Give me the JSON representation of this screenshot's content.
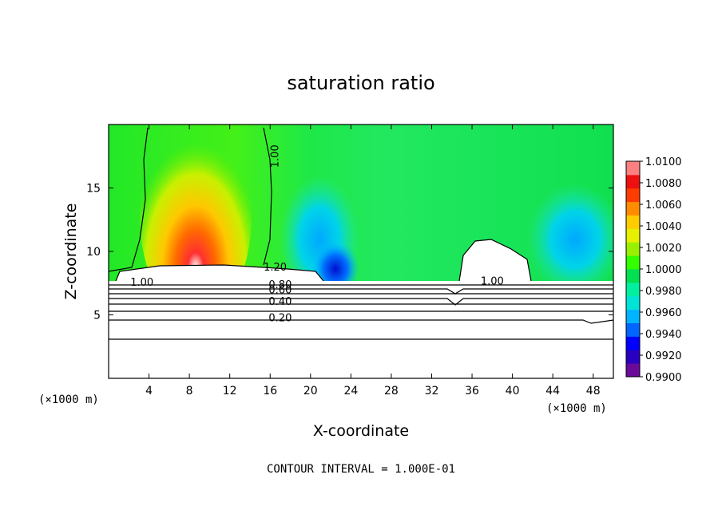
{
  "chart_data": {
    "type": "heatmap",
    "title": "saturation ratio",
    "xlabel": "X-coordinate",
    "ylabel": "Z-coordinate",
    "x_unit_label": "(×1000 m)",
    "y_unit_label": "(×1000 m)",
    "xlim": [
      0,
      50
    ],
    "ylim": [
      0,
      20
    ],
    "x_ticks": [
      "4",
      "8",
      "12",
      "16",
      "20",
      "24",
      "28",
      "32",
      "36",
      "40",
      "44",
      "48"
    ],
    "y_ticks": [
      "5",
      "10",
      "15"
    ],
    "footer": "CONTOUR INTERVAL = 1.000E-01",
    "colorbar": {
      "labels": [
        "1.0100",
        "1.0080",
        "1.0060",
        "1.0040",
        "1.0020",
        "1.0000",
        "0.9980",
        "0.9960",
        "0.9940",
        "0.9920",
        "0.9900"
      ],
      "range": [
        0.99,
        1.01
      ],
      "colors": [
        "#6a0a9a",
        "#2a00c0",
        "#0000ff",
        "#0066ff",
        "#00b4ff",
        "#00e4d8",
        "#00f0a0",
        "#00e050",
        "#33ff00",
        "#99f000",
        "#e6f000",
        "#ffcc00",
        "#ff8c00",
        "#ff3c00",
        "#ee1010",
        "#ff8080"
      ]
    },
    "contour_labels": [
      {
        "text": "1.00",
        "x": 16.8,
        "z": 17.5,
        "rotate": -90
      },
      {
        "text": "1.20",
        "x": 16.5,
        "z": 8.5
      },
      {
        "text": "1.00",
        "x": 3.3,
        "z": 7.3
      },
      {
        "text": "0.80",
        "x": 17.0,
        "z": 7.1
      },
      {
        "text": "0.60",
        "x": 17.0,
        "z": 6.7
      },
      {
        "text": "0.40",
        "x": 17.0,
        "z": 5.8
      },
      {
        "text": "0.20",
        "x": 17.0,
        "z": 4.5
      },
      {
        "text": "1.00",
        "x": 38.0,
        "z": 7.4
      }
    ]
  }
}
